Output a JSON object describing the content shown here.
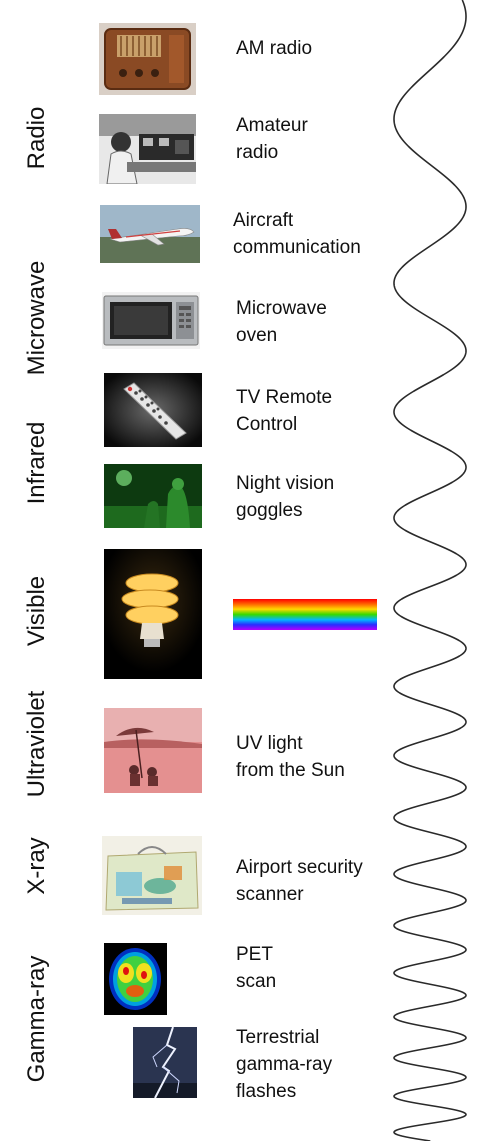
{
  "bands": [
    {
      "id": "radio",
      "label": "Radio"
    },
    {
      "id": "microwave",
      "label": "Microwave"
    },
    {
      "id": "infrared",
      "label": "Infrared"
    },
    {
      "id": "visible",
      "label": "Visible"
    },
    {
      "id": "ultraviolet",
      "label": "Ultraviolet"
    },
    {
      "id": "xray",
      "label": "X-ray"
    },
    {
      "id": "gamma",
      "label": "Gamma-ray"
    }
  ],
  "examples": [
    {
      "id": "am-radio",
      "line1": "AM radio",
      "line2": ""
    },
    {
      "id": "amateur-radio",
      "line1": "Amateur",
      "line2": "radio"
    },
    {
      "id": "aircraft",
      "line1": "Aircraft",
      "line2": "communication"
    },
    {
      "id": "microwave-oven",
      "line1": "Microwave",
      "line2": "oven"
    },
    {
      "id": "tv-remote",
      "line1": "TV Remote",
      "line2": "Control"
    },
    {
      "id": "night-vision",
      "line1": "Night vision",
      "line2": "goggles"
    },
    {
      "id": "uv-sun",
      "line1": "UV light",
      "line2": "from the Sun"
    },
    {
      "id": "airport",
      "line1": "Airport security",
      "line2": "scanner"
    },
    {
      "id": "pet",
      "line1": "PET",
      "line2": "scan"
    },
    {
      "id": "tgf",
      "line1": "Terrestrial",
      "line2": "gamma-ray",
      "line3": "flashes"
    }
  ],
  "colors": {
    "wave": "#2a2a2a",
    "text": "#111111"
  }
}
